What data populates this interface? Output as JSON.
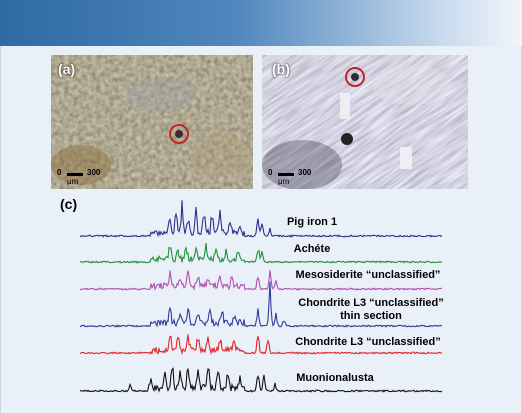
{
  "figure": {
    "panel_a": {
      "label": "(a)",
      "scale_zero": "0",
      "scale_max": "300",
      "scale_unit": "μm"
    },
    "panel_b": {
      "label": "(b)",
      "scale_zero": "0",
      "scale_max": "300",
      "scale_unit": "μm"
    },
    "panel_c": {
      "label": "(c)"
    }
  },
  "spectra": [
    {
      "label": "Pig iron 1",
      "color": "#2e2f8c"
    },
    {
      "label": "Achéte",
      "color": "#1f8f3a"
    },
    {
      "label": "Mesosiderite “unclassified”",
      "color": "#b24fb0"
    },
    {
      "label_line1": "Chondrite L3 “unclassified”",
      "label_line2": "thin section",
      "color": "#2f3b9e"
    },
    {
      "label": "Chondrite L3 “unclassified”",
      "color": "#e0262a"
    },
    {
      "label": "Muonionalusta",
      "color": "#111111"
    }
  ],
  "colors": {
    "banner": "#2f6aa3",
    "background": "#e9f0f7",
    "marker_circle": "#c0272d"
  }
}
